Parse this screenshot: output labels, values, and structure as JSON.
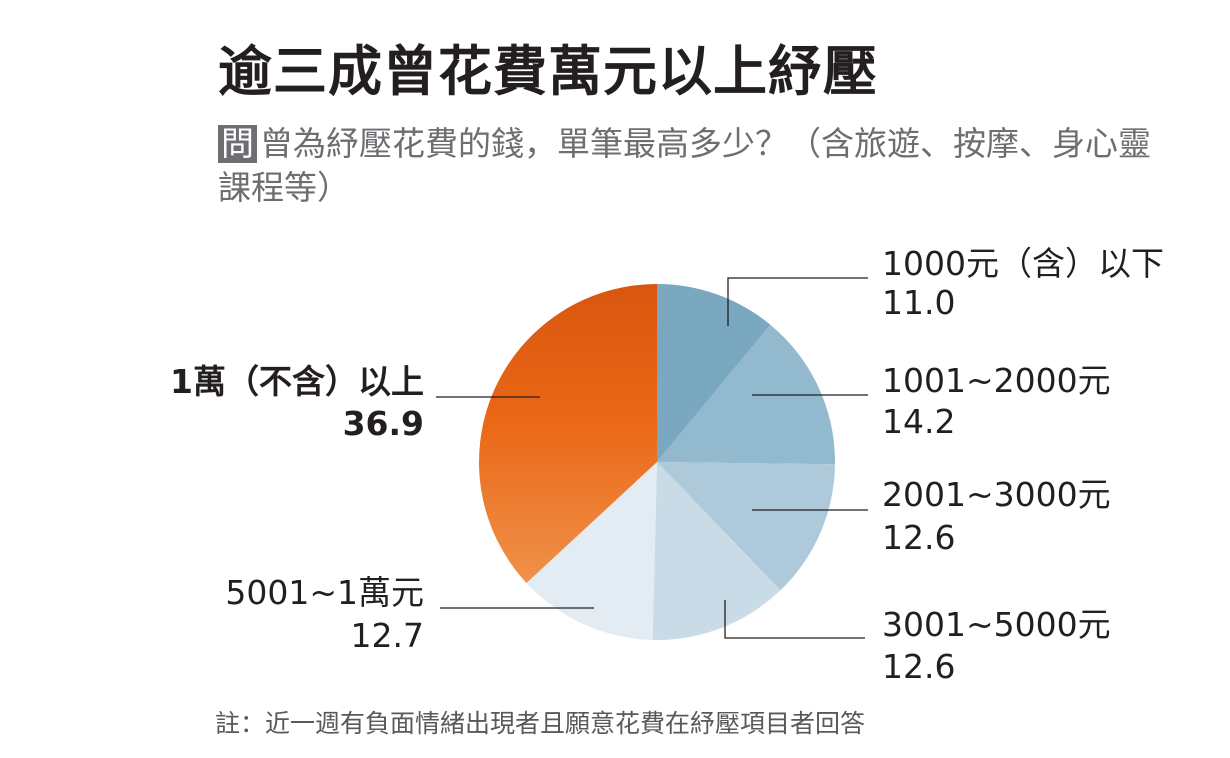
{
  "title": "逾三成曾花費萬元以上紓壓",
  "question_badge": "問",
  "question_text": "曾為紓壓花費的錢，單筆最高多少？（含旅遊、按摩、身心靈課程等）",
  "note": "註：近一週有負面情緒出現者且願意花費在紓壓項目者回答",
  "chart_data": {
    "type": "pie",
    "title": "逾三成曾花費萬元以上紓壓",
    "start_angle": "12 o'clock",
    "direction": "clockwise",
    "slices": [
      {
        "label": "1000元（含）以下",
        "value": 11.0,
        "value_label": "11.0",
        "color": "#7ba8c1"
      },
      {
        "label": "1001~2000元",
        "value": 14.2,
        "value_label": "14.2",
        "color": "#93b9ce"
      },
      {
        "label": "2001~3000元",
        "value": 12.6,
        "value_label": "12.6",
        "color": "#adc9da"
      },
      {
        "label": "3001~5000元",
        "value": 12.6,
        "value_label": "12.6",
        "color": "#c8dbe7"
      },
      {
        "label": "5001~1萬元",
        "value": 12.7,
        "value_label": "12.7",
        "color": "#e2ecf2"
      },
      {
        "label": "1萬（不含）以上",
        "value": 36.9,
        "value_label": "36.9",
        "color": "#e8661c",
        "highlight": true
      }
    ]
  }
}
